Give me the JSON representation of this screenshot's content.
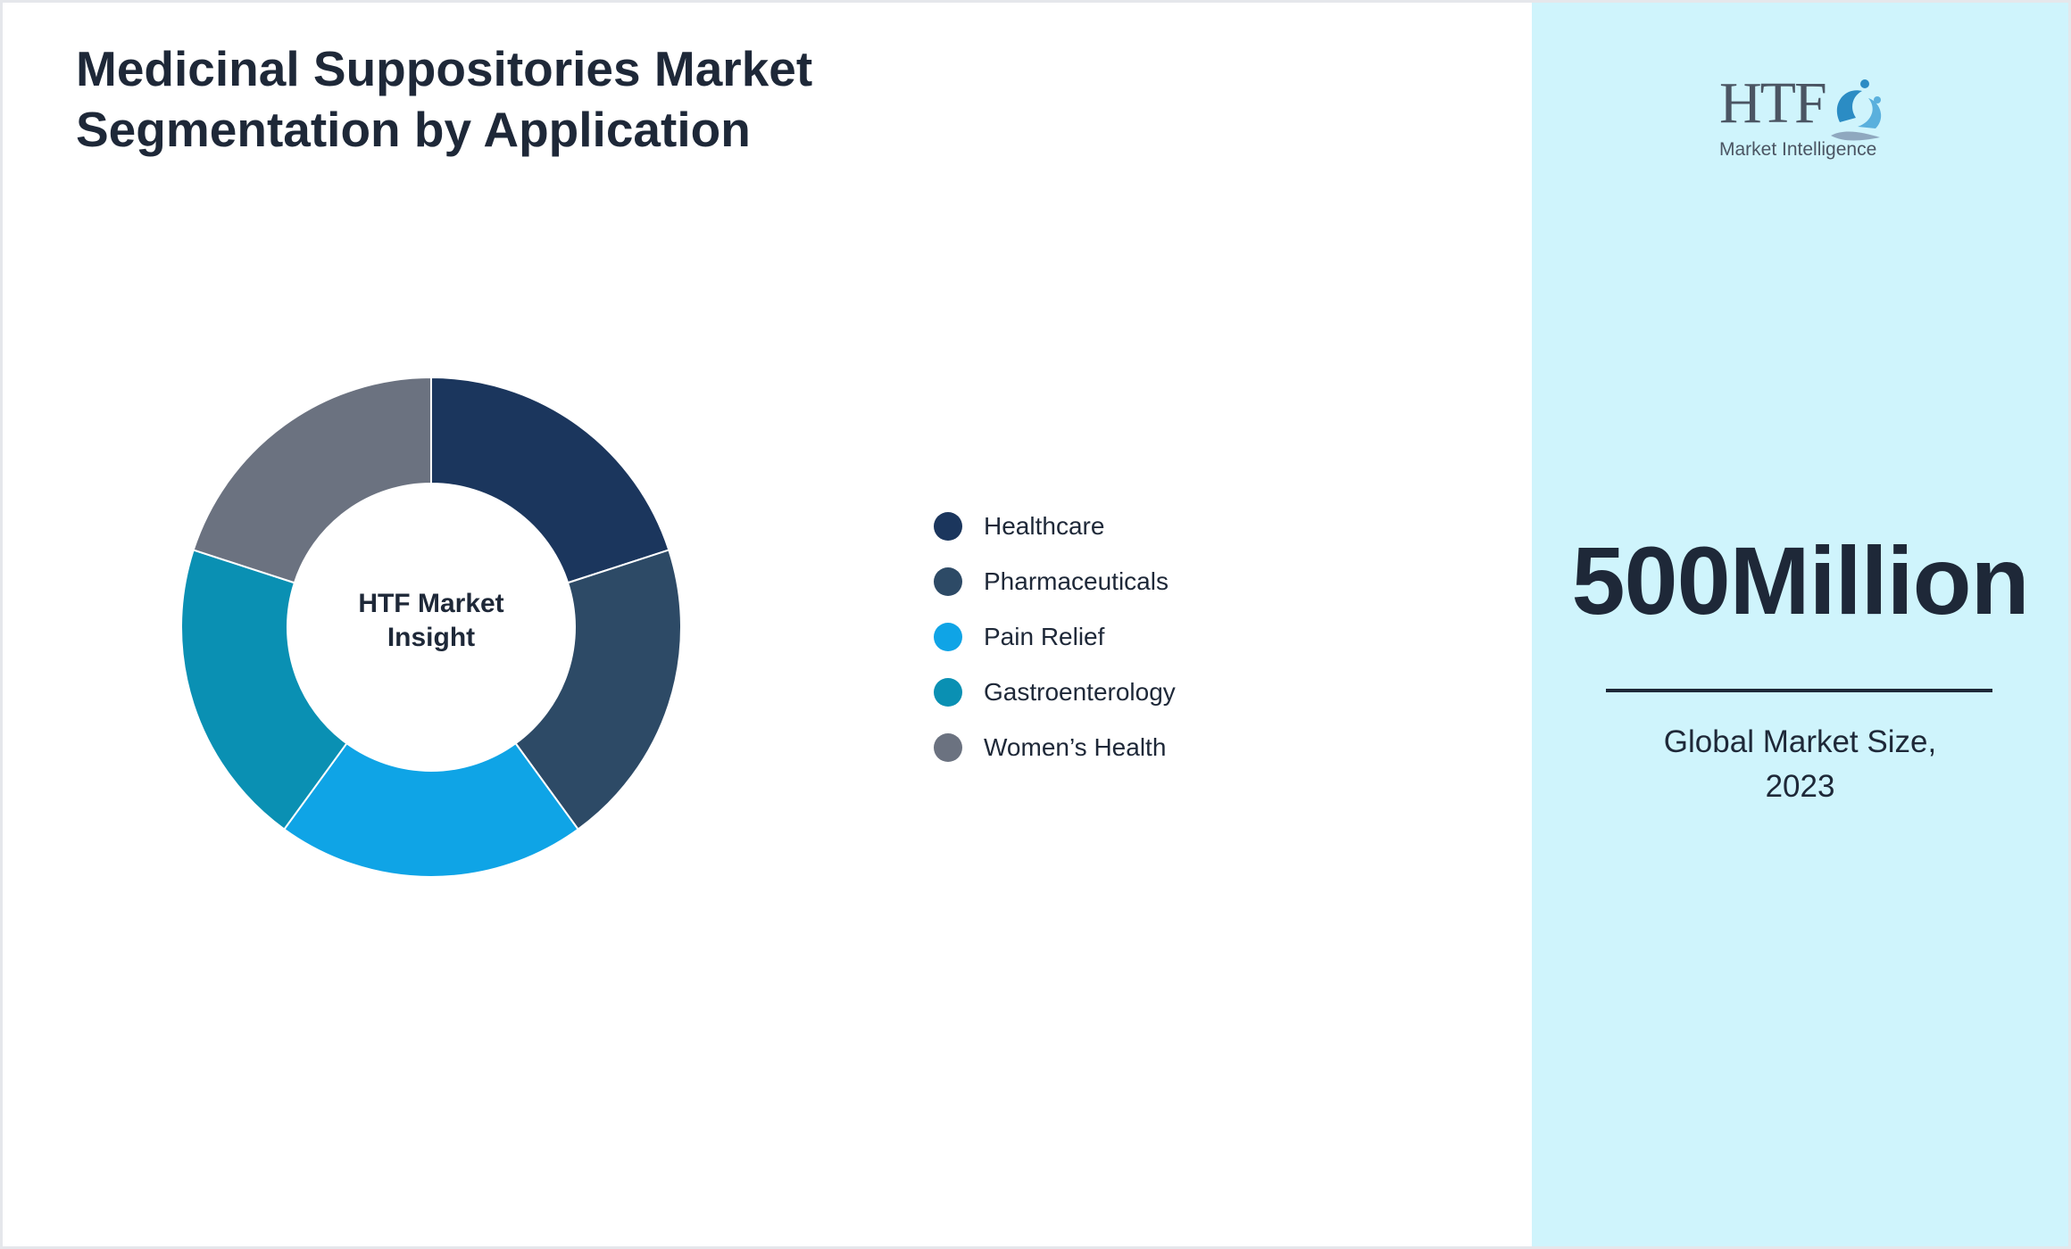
{
  "header": {
    "title_line1": "Medicinal Suppositories Market",
    "title_line2": "Segmentation by Application"
  },
  "chart_data": {
    "type": "pie",
    "variant": "donut",
    "center_label_line1": "HTF Market",
    "center_label_line2": "Insight",
    "legend_position": "right",
    "categories": [
      "Healthcare",
      "Pharmaceuticals",
      "Pain Relief",
      "Gastroenterology",
      "Women’s Health"
    ],
    "values": [
      20,
      20,
      20,
      20,
      20
    ],
    "colors": [
      "#1b365d",
      "#2d4a66",
      "#0fa4e6",
      "#0a90b3",
      "#6b7280"
    ]
  },
  "logo": {
    "letters": "HTF",
    "subtitle": "Market Intelligence"
  },
  "stat": {
    "value": "500Million",
    "caption_line1": "Global Market Size,",
    "caption_line2": "2023"
  },
  "colors": {
    "text": "#1e2838",
    "side_panel": "#cff4fc",
    "border": "#e5e7eb"
  }
}
